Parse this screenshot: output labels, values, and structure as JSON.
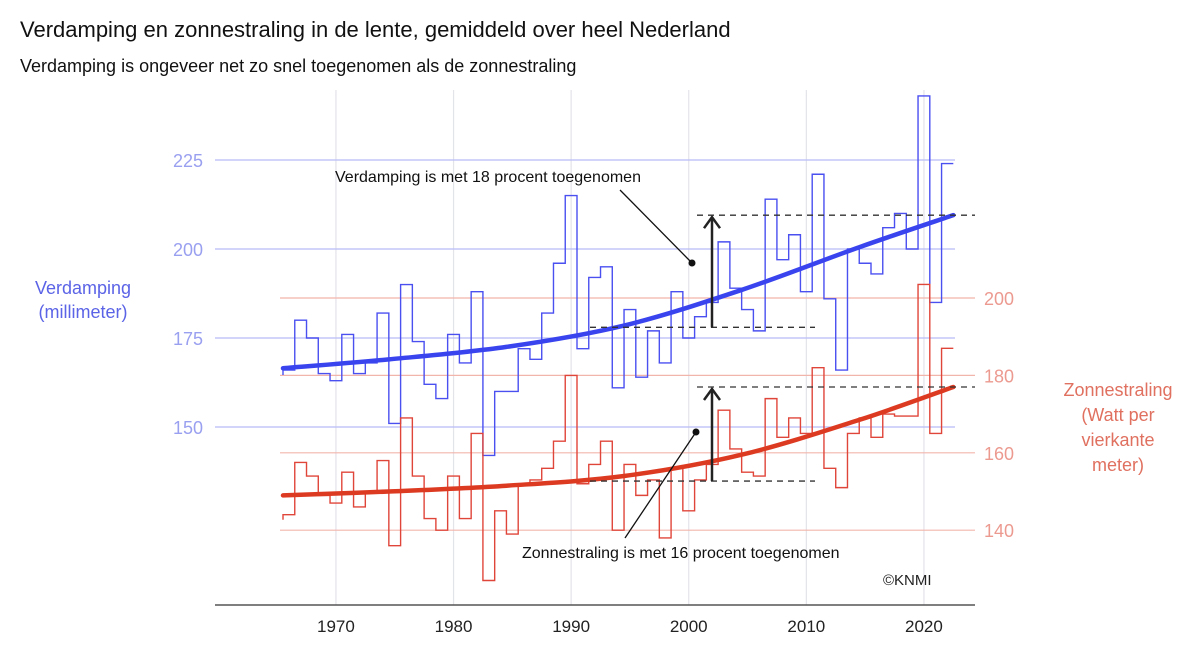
{
  "title": "Verdamping en zonnestraling in de lente, gemiddeld over heel Nederland",
  "subtitle": "Verdamping is ongeveer net zo snel toegenomen als de zonnestraling",
  "copyright": "©KNMI",
  "colors": {
    "evap": "#4a4ff0",
    "evap_trend": "#3a44ee",
    "sun": "#e0453a",
    "sun_trend": "#dd3a22",
    "evap_grid": "#b8bcf5",
    "sun_grid": "#f2b5ab"
  },
  "chart_data": {
    "type": "line",
    "title": "Verdamping en zonnestraling in de lente, gemiddeld over heel Nederland",
    "xlabel": "",
    "x_ticks": [
      1970,
      1980,
      1990,
      2000,
      2010,
      2020
    ],
    "xlim": [
      1963,
      2024
    ],
    "y_left": {
      "label_lines": [
        "Verdamping",
        "(millimeter)"
      ],
      "ticks": [
        150,
        175,
        200,
        225
      ],
      "ylim": [
        130,
        250
      ]
    },
    "y_right": {
      "label_lines": [
        "Zonnestraling",
        "(Watt per",
        "vierkante",
        "meter)"
      ],
      "ticks": [
        140,
        160,
        180,
        200
      ],
      "ylim": [
        120,
        220
      ]
    },
    "years": [
      1966,
      1967,
      1968,
      1969,
      1970,
      1971,
      1972,
      1973,
      1974,
      1975,
      1976,
      1977,
      1978,
      1979,
      1980,
      1981,
      1982,
      1983,
      1984,
      1985,
      1986,
      1987,
      1988,
      1989,
      1990,
      1991,
      1992,
      1993,
      1994,
      1995,
      1996,
      1997,
      1998,
      1999,
      2000,
      2001,
      2002,
      2003,
      2004,
      2005,
      2006,
      2007,
      2008,
      2009,
      2010,
      2011,
      2012,
      2013,
      2014,
      2015,
      2016,
      2017,
      2018,
      2019,
      2020,
      2021,
      2022
    ],
    "series": [
      {
        "name": "Verdamping",
        "axis": "left",
        "style": "step",
        "values": [
          166,
          180,
          175,
          165,
          163,
          176,
          165,
          168,
          182,
          151,
          190,
          174,
          162,
          158,
          176,
          168,
          188,
          142,
          160,
          160,
          172,
          169,
          182,
          196,
          215,
          172,
          192,
          195,
          161,
          183,
          164,
          177,
          168,
          188,
          175,
          181,
          185,
          202,
          189,
          183,
          177,
          214,
          197,
          204,
          188,
          221,
          186,
          166,
          200,
          196,
          193,
          206,
          210,
          200,
          243,
          185,
          224
        ]
      },
      {
        "name": "Zonnestraling",
        "axis": "right",
        "style": "step",
        "values": [
          144,
          157.5,
          154,
          149,
          147,
          155,
          146,
          150,
          158,
          136,
          169,
          154,
          143,
          140,
          154,
          143,
          165,
          127,
          145,
          139,
          152,
          153,
          156,
          163,
          180,
          152,
          157,
          163,
          140,
          157,
          149,
          153,
          138,
          156,
          145,
          153,
          157,
          171,
          161,
          155,
          154,
          174,
          164,
          169,
          165,
          182,
          156,
          151,
          165,
          169,
          164,
          170,
          169.5,
          169.5,
          203.5,
          165,
          187
        ]
      },
      {
        "name": "Verdamping trend",
        "axis": "left",
        "style": "line",
        "x": [
          1966,
          1975,
          1985,
          1995,
          2005,
          2015,
          2023
        ],
        "values": [
          166.5,
          169,
          172.5,
          178.5,
          188.5,
          200.5,
          209.5
        ]
      },
      {
        "name": "Zonnestraling trend",
        "axis": "right",
        "style": "line",
        "x": [
          1966,
          1975,
          1985,
          1995,
          2005,
          2015,
          2023
        ],
        "values": [
          149,
          150,
          151.5,
          154,
          159.5,
          168.5,
          177
        ]
      }
    ],
    "annotations": [
      {
        "text": "Verdamping is met 18 procent toegenomen",
        "axis": "left",
        "from": 178,
        "to": 209.5
      },
      {
        "text": "Zonnestraling is met 16 procent toegenomen",
        "axis": "right",
        "from": 152.7,
        "to": 177
      }
    ],
    "grid": true
  }
}
